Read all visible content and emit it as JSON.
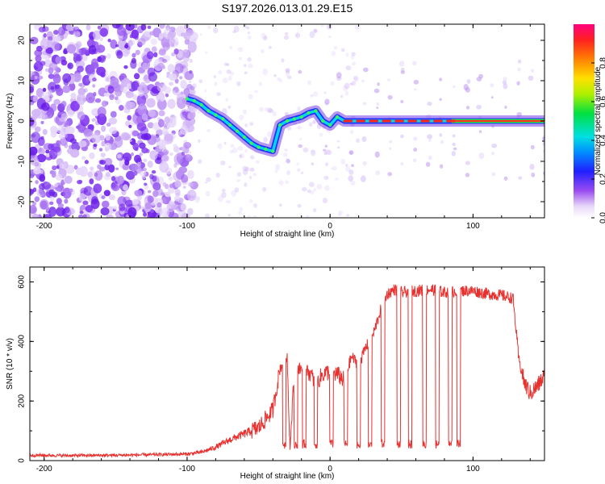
{
  "title": "S197.2026.013.01.29.E15",
  "chart_data": [
    {
      "type": "heatmap",
      "name": "spectrogram",
      "xlabel": "Height of straight line (km)",
      "ylabel": "Frequency (Hz)",
      "xlim": [
        -210,
        150
      ],
      "ylim": [
        -24,
        24
      ],
      "xticks": [
        "-200",
        "-100",
        "0",
        "100"
      ],
      "yticks": [
        "20",
        "10",
        "0",
        "-10",
        "-20"
      ],
      "colorbar": {
        "label": "Normalized spectral amplitude",
        "range": [
          0,
          1
        ],
        "ticks": [
          "0.0",
          "0.2",
          "0.4",
          "0.6",
          "0.8"
        ]
      },
      "ridge": {
        "description": "tracked carrier frequency (Hz) vs height (km)",
        "x": [
          -100,
          -95,
          -90,
          -85,
          -80,
          -75,
          -70,
          -65,
          -60,
          -55,
          -50,
          -45,
          -40,
          -35,
          -30,
          -25,
          -20,
          -15,
          -10,
          -5,
          0,
          5,
          10,
          20,
          40,
          60,
          80,
          100,
          120,
          150
        ],
        "y": [
          5.5,
          5.0,
          4.0,
          2.5,
          1.5,
          0.5,
          -1.0,
          -2.5,
          -4.0,
          -5.5,
          -6.5,
          -7.0,
          -7.5,
          -1.0,
          0,
          0.5,
          1.0,
          2.0,
          2.5,
          0,
          -1.0,
          1.0,
          0,
          0,
          0,
          0,
          0,
          0,
          0,
          0
        ]
      }
    },
    {
      "type": "line",
      "name": "snr",
      "xlabel": "Height of straight line (km)",
      "ylabel": "SNR (10 * v/v)",
      "xlim": [
        -210,
        150
      ],
      "ylim": [
        0,
        650
      ],
      "xticks": [
        "-200",
        "-100",
        "0",
        "100"
      ],
      "yticks": [
        "600",
        "400",
        "200",
        "0"
      ],
      "color": "#e8312f",
      "series": [
        {
          "name": "SNR",
          "x": [
            -210,
            -180,
            -150,
            -120,
            -100,
            -90,
            -80,
            -70,
            -60,
            -50,
            -40,
            -35,
            -30,
            -28,
            -25,
            -20,
            -15,
            -10,
            -5,
            0,
            5,
            10,
            15,
            20,
            25,
            30,
            35,
            40,
            45,
            50,
            60,
            70,
            80,
            90,
            100,
            110,
            120,
            128,
            132,
            136,
            140,
            145,
            150
          ],
          "y": [
            18,
            17,
            18,
            20,
            22,
            28,
            45,
            70,
            90,
            110,
            170,
            310,
            350,
            40,
            300,
            310,
            300,
            260,
            290,
            300,
            290,
            270,
            350,
            320,
            380,
            420,
            500,
            560,
            575,
            565,
            570,
            575,
            565,
            570,
            570,
            560,
            555,
            545,
            340,
            260,
            225,
            250,
            285
          ]
        }
      ]
    }
  ]
}
